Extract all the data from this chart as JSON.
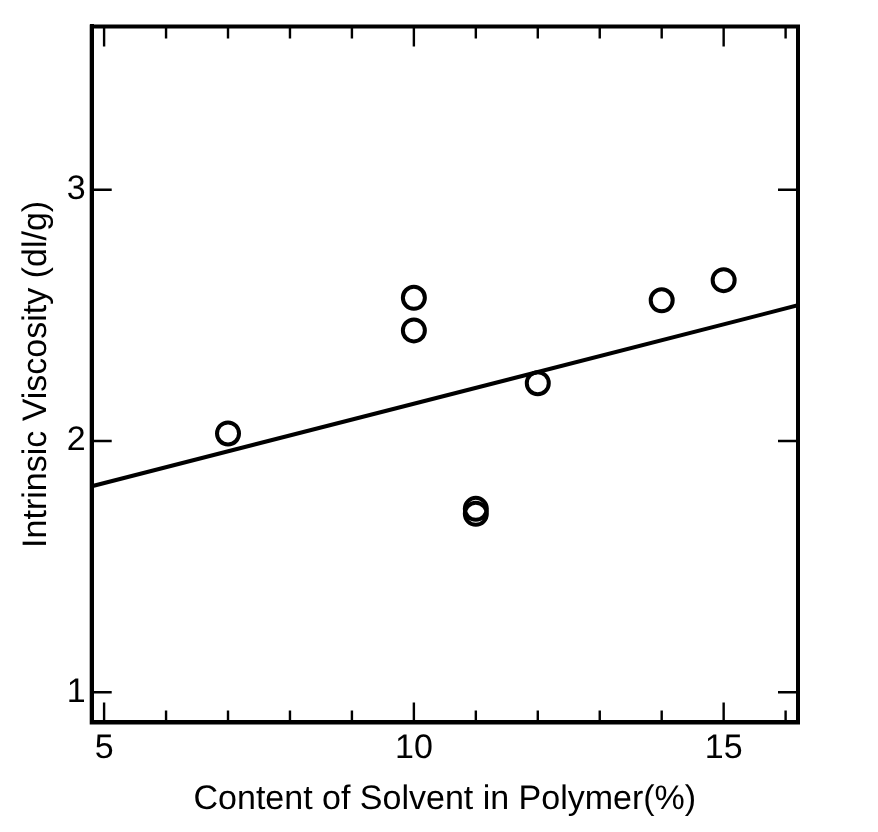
{
  "chart_data": {
    "type": "scatter",
    "xlabel": "Content of Solvent in Polymer(%)",
    "ylabel": "Intrinsic Viscosity (dl/g)",
    "xlim": [
      4.8,
      16.2
    ],
    "ylim": [
      0.88,
      3.65
    ],
    "xticks": [
      5,
      {
        "value": 6,
        "label": null
      },
      {
        "value": 7,
        "label": null
      },
      {
        "value": 8,
        "label": null
      },
      {
        "value": 9,
        "label": null
      },
      10,
      {
        "value": 11,
        "label": null
      },
      {
        "value": 12,
        "label": null
      },
      {
        "value": 13,
        "label": null
      },
      {
        "value": 14,
        "label": null
      },
      15,
      {
        "value": 16,
        "label": null
      }
    ],
    "yticks": [
      1,
      2,
      3
    ],
    "grid": false,
    "marker": "circle",
    "series": [
      {
        "color": "#000000",
        "x": [
          7,
          10,
          10,
          11,
          11,
          12,
          14,
          15
        ],
        "values": [
          2.03,
          2.57,
          2.44,
          1.73,
          1.71,
          2.23,
          2.56,
          2.64
        ]
      },
      {
        "type": "line",
        "color": "#000000",
        "x": [
          4.8,
          16.2
        ],
        "values": [
          1.82,
          2.54
        ],
        "marker": "none",
        "line_style": "solid"
      }
    ]
  }
}
